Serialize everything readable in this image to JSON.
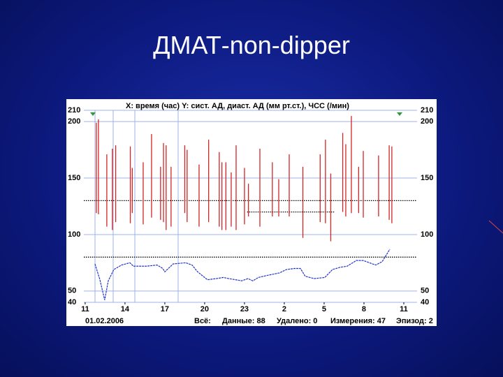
{
  "title": "ДМАТ-non-dipper",
  "chart_data": {
    "type": "range",
    "title": "X: время (час)  Y: сист. АД, диаст. АД (мм рт.ст.), ЧСС (/мин)",
    "xlim": [
      10.9,
      36
    ],
    "xticks": [
      11,
      14,
      17,
      20,
      23,
      {
        "value": 26,
        "label": "2"
      },
      {
        "value": 29,
        "label": "5"
      },
      {
        "value": 32,
        "label": "8"
      },
      {
        "value": 35,
        "label": "11"
      }
    ],
    "ylim": [
      40,
      210
    ],
    "yticks": [
      40,
      50,
      100,
      150,
      200,
      210
    ],
    "grid": true,
    "reference_lines": [
      {
        "value": 130,
        "from": 10.9,
        "to": 36
      },
      {
        "value": 120,
        "from": 23.2,
        "to": 29.8
      },
      {
        "value": 80,
        "from": 10.9,
        "to": 36
      }
    ],
    "series": [
      {
        "type": "range",
        "color": "#d42424",
        "x": [
          11.84,
          12.0,
          12.63,
          13.05,
          13.3,
          14.4,
          14.55,
          15.37,
          16.0,
          16.68,
          16.9,
          17.1,
          17.47,
          18.5,
          18.68,
          19.58,
          20.3,
          21.1,
          21.3,
          21.6,
          22.0,
          22.37,
          23.0,
          23.3,
          24.16,
          25.1,
          25.58,
          26.37,
          27.4,
          28.7,
          29.1,
          29.5,
          30.4,
          30.63,
          31.05,
          31.6,
          31.95,
          33.1,
          33.9,
          34.1
        ],
        "high": [
          199,
          202,
          171,
          176,
          179,
          178,
          159,
          164,
          189,
          160,
          181,
          179,
          160,
          179,
          175,
          162,
          184,
          173,
          164,
          164,
          155,
          179,
          159,
          145,
          176,
          164,
          149,
          171,
          160,
          171,
          184,
          154,
          190,
          180,
          205,
          160,
          174,
          170,
          179,
          178
        ],
        "low": [
          119,
          118,
          107,
          104,
          111,
          110,
          119,
          109,
          115,
          113,
          111,
          104,
          107,
          119,
          111,
          107,
          111,
          107,
          104,
          104,
          107,
          104,
          109,
          116,
          107,
          116,
          116,
          116,
          97,
          111,
          110,
          94,
          120,
          116,
          119,
          119,
          115,
          116,
          113,
          110
        ]
      },
      {
        "type": "line",
        "color": "#2233cc",
        "x": [
          11.74,
          12.11,
          12.47,
          12.74,
          13.16,
          13.74,
          14.37,
          14.63,
          15.63,
          16.42,
          16.84,
          17.0,
          17.63,
          18.58,
          19.05,
          19.47,
          20.21,
          20.89,
          21.42,
          21.79,
          22.32,
          22.79,
          23.26,
          23.63,
          24.05,
          24.79,
          25.63,
          26.16,
          26.79,
          27.21,
          27.58,
          28.26,
          29.05,
          29.63,
          30.21,
          30.74,
          31.42,
          31.95,
          32.89,
          33.37,
          33.95
        ],
        "values": [
          74,
          60,
          42,
          59,
          69,
          73,
          75,
          72,
          72,
          73,
          70,
          67,
          74,
          75,
          73,
          67,
          60,
          61,
          62,
          61,
          60,
          59,
          61,
          59,
          62,
          64,
          66,
          69,
          70,
          70,
          63,
          61,
          62,
          69,
          71,
          72,
          77,
          77,
          73,
          76,
          87
        ]
      }
    ],
    "footer": [
      "01.02.2006",
      "Всё:",
      "Данные: 88",
      "Удалено: 0",
      "Измерения: 47",
      "Эпизод: 2"
    ]
  }
}
